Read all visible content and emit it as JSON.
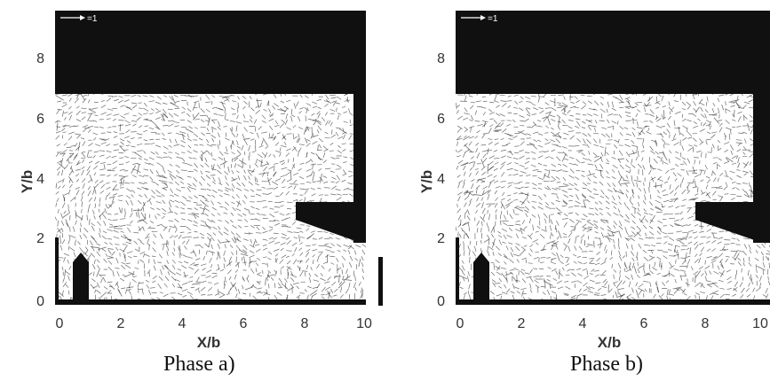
{
  "figure": {
    "panels": [
      {
        "caption": "Phase a)",
        "x_label": "X/b",
        "y_label": "Y/b",
        "x_ticks": [
          "0",
          "2",
          "4",
          "6",
          "8",
          "10"
        ],
        "y_ticks": [
          "0",
          "2",
          "4",
          "6",
          "8"
        ],
        "reference_vector_label": "=1"
      },
      {
        "caption": "Phase b)",
        "x_label": "X/b",
        "y_label": "Y/b",
        "x_ticks": [
          "0",
          "2",
          "4",
          "6",
          "8",
          "10"
        ],
        "y_ticks": [
          "0",
          "2",
          "4",
          "6",
          "8"
        ],
        "reference_vector_label": "=1"
      }
    ],
    "colors": {
      "solid_region": "#101010",
      "vector_ink": "#3a3a3a",
      "background": "#ffffff"
    }
  }
}
